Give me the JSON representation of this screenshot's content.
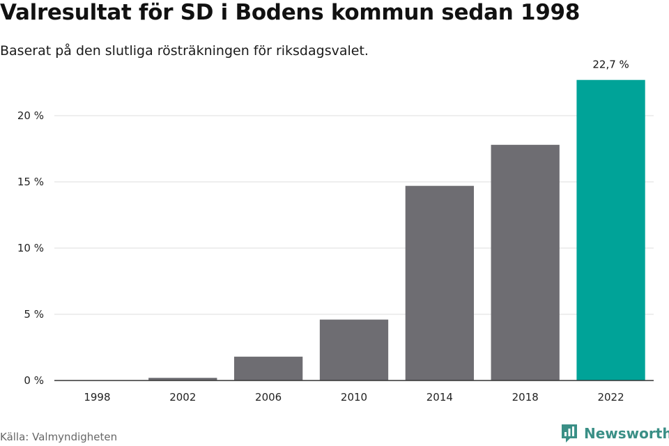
{
  "header": {
    "title": "Valresultat för SD i Bodens kommun sedan 1998",
    "subtitle": "Baserat på den slutliga rösträkningen för riksdagsvalet."
  },
  "footer": {
    "source": "Källa: Valmyndigheten",
    "logo_text": "Newsworthy"
  },
  "colors": {
    "bar": "#6e6d72",
    "highlight": "#00a398",
    "grid": "#dddddd",
    "axis": "#333333",
    "logo": "#3a8f86"
  },
  "chart_data": {
    "type": "bar",
    "title": "Valresultat för SD i Bodens kommun sedan 1998",
    "subtitle": "Baserat på den slutliga rösträkningen för riksdagsvalet.",
    "xlabel": "",
    "ylabel": "",
    "categories": [
      "1998",
      "2002",
      "2006",
      "2010",
      "2014",
      "2018",
      "2022"
    ],
    "values": [
      0,
      0.2,
      1.8,
      4.6,
      14.7,
      17.8,
      22.7
    ],
    "highlight_index": 6,
    "data_labels": [
      {
        "index": 6,
        "text": "22,7 %"
      }
    ],
    "ylim": [
      0,
      23
    ],
    "yticks": [
      {
        "value": 0,
        "label": "0 %"
      },
      {
        "value": 5,
        "label": "5 %"
      },
      {
        "value": 10,
        "label": "10 %"
      },
      {
        "value": 15,
        "label": "15 %"
      },
      {
        "value": 20,
        "label": "20 %"
      }
    ],
    "grid": true,
    "legend": "none"
  }
}
